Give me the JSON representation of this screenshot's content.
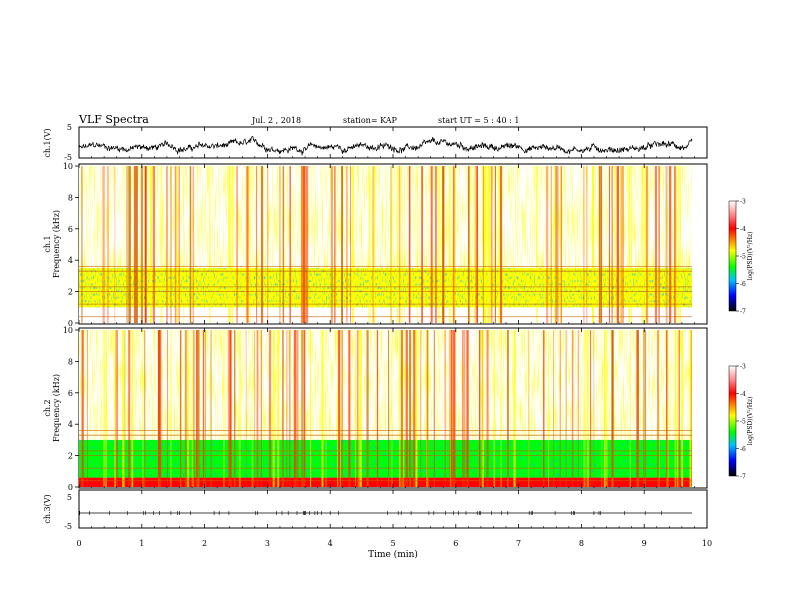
{
  "header": {
    "title": "VLF Spectra",
    "date": "Jul. 2 , 2018",
    "station": "station= KAP",
    "start_time": "start UT = 5 : 40 : 1"
  },
  "chart_data": [
    {
      "type": "line",
      "panel": "ch1-waveform",
      "ylabel": "ch.1(V)",
      "ylim": [
        -5,
        5
      ],
      "yticks": [
        "5",
        "-5"
      ],
      "xlim": [
        0,
        10
      ],
      "note_values": "dense waveform trace, approx. range -5 to 1.5 V",
      "color": "#000000"
    },
    {
      "type": "heatmap",
      "panel": "ch1-spectrogram",
      "ylabel": "ch.1\nFrequency (kHz)",
      "ylim": [
        0,
        10
      ],
      "yticks": [
        "0",
        "2",
        "4",
        "6",
        "8",
        "10"
      ],
      "xlim": [
        0,
        10
      ],
      "colorbar": {
        "label": "log(PSD)(V²/Hz)",
        "ticks": [
          "-3",
          "-4",
          "-5",
          "-6",
          "-7"
        ],
        "range": [
          -7,
          -3
        ]
      },
      "bands_khz": [
        {
          "from": 0,
          "to": 1.0,
          "level": -3.3
        },
        {
          "from": 1.0,
          "to": 3.5,
          "level": -5.0
        },
        {
          "from": 3.5,
          "to": 10,
          "level": -3.5
        }
      ]
    },
    {
      "type": "heatmap",
      "panel": "ch2-spectrogram",
      "ylabel": "ch.2\nFrequency (kHz)",
      "ylim": [
        0,
        10
      ],
      "yticks": [
        "0",
        "2",
        "4",
        "6",
        "8",
        "10"
      ],
      "xlim": [
        0,
        10
      ],
      "colorbar": {
        "label": "log(PSD)(V²/Hz)",
        "ticks": [
          "-3",
          "-4",
          "-5",
          "-6",
          "-7"
        ],
        "range": [
          -7,
          -3
        ]
      },
      "bands_khz": [
        {
          "from": 0,
          "to": 0.6,
          "level": -3.8
        },
        {
          "from": 0.6,
          "to": 3.0,
          "level": -5.2
        },
        {
          "from": 3.0,
          "to": 10,
          "level": -3.5
        }
      ]
    },
    {
      "type": "line",
      "panel": "ch3-waveform",
      "ylabel": "ch.3(V)",
      "ylim": [
        -5,
        5
      ],
      "yticks": [
        "5",
        "-5"
      ],
      "xlim": [
        0,
        10
      ],
      "note_values": "flat trace near -2 V",
      "color": "#000000"
    }
  ],
  "xaxis": {
    "label": "Time (min)",
    "ticks": [
      "0",
      "1",
      "2",
      "3",
      "4",
      "5",
      "6",
      "7",
      "8",
      "9",
      "10"
    ]
  }
}
